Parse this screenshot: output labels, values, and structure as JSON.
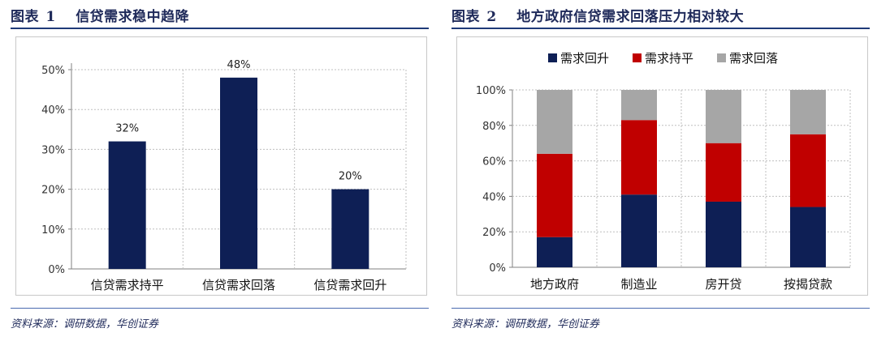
{
  "left": {
    "title_label": "图表",
    "title_num": "1",
    "title_text": "信贷需求稳中趋降",
    "source": "资料来源：调研数据，华创证券"
  },
  "right": {
    "title_label": "图表",
    "title_num": "2",
    "title_text": "地方政府信贷需求回落压力相对较大",
    "source": "资料来源：调研数据，华创证券"
  },
  "colors": {
    "navy": "#0e1f55",
    "red": "#c00000",
    "gray": "#a6a6a6",
    "title": "#1f2a5a"
  },
  "chart_data": [
    {
      "type": "bar",
      "categories": [
        "信贷需求持平",
        "信贷需求回落",
        "信贷需求回升"
      ],
      "values": [
        32,
        48,
        20
      ],
      "data_labels": [
        "32%",
        "48%",
        "20%"
      ],
      "yticks": [
        "0%",
        "10%",
        "20%",
        "30%",
        "40%",
        "50%"
      ],
      "ylim": [
        0,
        50
      ],
      "color": "#0e1f55",
      "grid": true
    },
    {
      "type": "bar",
      "stacked": true,
      "categories": [
        "地方政府",
        "制造业",
        "房开贷",
        "按揭贷款"
      ],
      "series": [
        {
          "name": "需求回升",
          "color": "#0e1f55",
          "values": [
            17,
            41,
            37,
            34
          ]
        },
        {
          "name": "需求持平",
          "color": "#c00000",
          "values": [
            47,
            42,
            33,
            41
          ]
        },
        {
          "name": "需求回落",
          "color": "#a6a6a6",
          "values": [
            36,
            17,
            30,
            25
          ]
        }
      ],
      "yticks": [
        "0%",
        "20%",
        "40%",
        "60%",
        "80%",
        "100%"
      ],
      "ylim": [
        0,
        100
      ],
      "legend": "top",
      "grid": true
    }
  ]
}
